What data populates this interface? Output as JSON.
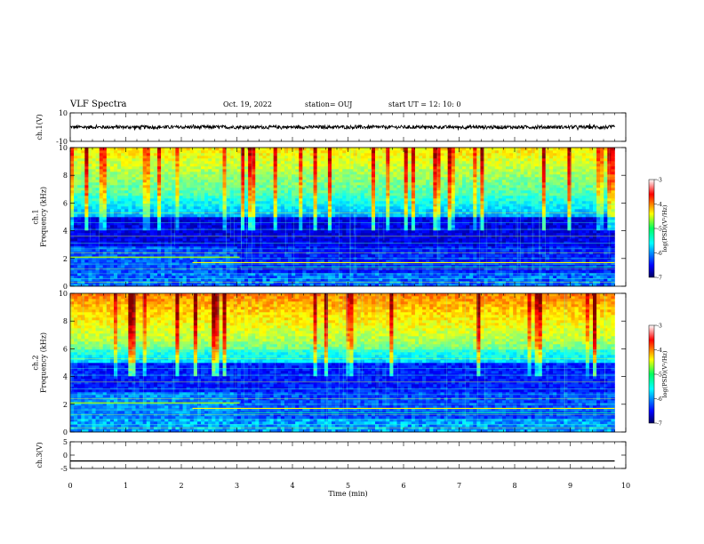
{
  "header": {
    "title": "VLF Spectra",
    "date": "Oct. 19, 2022",
    "station": "station= OUJ",
    "start": "start  UT =   12: 10: 0"
  },
  "chart_data": [
    {
      "type": "line",
      "panel": "ch1-waveform",
      "ylabel": "ch.1(V)",
      "ylim": [
        -10,
        10
      ],
      "yticks": [
        "10",
        "-10"
      ],
      "x_range": [
        0,
        9.8
      ],
      "baseline": 0,
      "noise_amplitude": 1.2
    },
    {
      "type": "heatmap",
      "panel": "ch1-spectrogram",
      "ylabel": "ch.1\nFrequency  (kHz)",
      "ylim": [
        0,
        10
      ],
      "yticks": [
        "0",
        "2",
        "4",
        "6",
        "8",
        "10"
      ],
      "x_range": [
        0,
        9.8
      ],
      "colorbar": {
        "label": "log(PSD)(V²/Hz)",
        "ticks": [
          "-3",
          "-4",
          "-5",
          "-6",
          "-7"
        ],
        "range": [
          -7,
          -3
        ]
      }
    },
    {
      "type": "heatmap",
      "panel": "ch2-spectrogram",
      "ylabel": "ch.2\nFrequency  (kHz)",
      "ylim": [
        0,
        10
      ],
      "yticks": [
        "0",
        "2",
        "4",
        "6",
        "8",
        "10"
      ],
      "x_range": [
        0,
        9.8
      ],
      "colorbar": {
        "label": "log(PSD)(V²/Hz)",
        "ticks": [
          "-3",
          "-4",
          "-5",
          "-6",
          "-7"
        ],
        "range": [
          -7,
          -3
        ]
      }
    },
    {
      "type": "line",
      "panel": "ch3-waveform",
      "ylabel": "ch.3(V)",
      "ylim": [
        -5,
        5
      ],
      "yticks": [
        "5",
        "0",
        "-5"
      ],
      "x_range": [
        0,
        9.8
      ],
      "baseline": -2.2
    }
  ],
  "xaxis": {
    "label": "Time  (min)",
    "ticks": [
      "0",
      "1",
      "2",
      "3",
      "4",
      "5",
      "6",
      "7",
      "8",
      "9",
      "10"
    ],
    "range": [
      0,
      10
    ]
  }
}
